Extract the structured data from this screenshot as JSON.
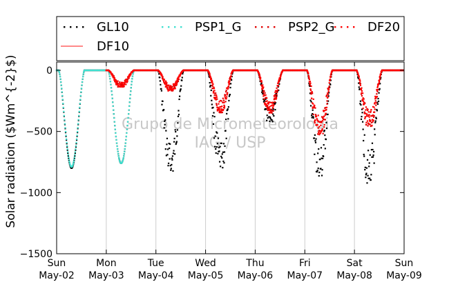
{
  "chart_data": {
    "type": "scatter",
    "ylabel": "Solar radiation ($Wm^{-2}$)",
    "ylim": [
      -1500,
      0
    ],
    "yticks": [
      0,
      -500,
      -1000,
      -1500
    ],
    "ytick_labels": [
      "0",
      "−500",
      "−1000",
      "−1500"
    ],
    "xlim": [
      "2010-05-02",
      "2010-05-09"
    ],
    "xtick_labels": [
      [
        "Sun",
        "May-02"
      ],
      [
        "Mon",
        "May-03"
      ],
      [
        "Tue",
        "May-04"
      ],
      [
        "Wed",
        "May-05"
      ],
      [
        "Thu",
        "May-06"
      ],
      [
        "Fri",
        "May-07"
      ],
      [
        "Sat",
        "May-08"
      ],
      [
        "Sun",
        "May-09"
      ]
    ],
    "grid": "vertical",
    "legend": {
      "placement": "top",
      "columns": 4
    },
    "watermark": [
      "Grupo de Micrometeorologia",
      "IAG / USP"
    ],
    "series": [
      {
        "name": "GL10",
        "color": "#000000",
        "marker": "dot",
        "daily_min": [
          -800,
          -760,
          -790,
          -780,
          -400,
          -830,
          -880
        ]
      },
      {
        "name": "PSP1_G",
        "color": "#40e0d0",
        "marker": "dot",
        "daily_min": [
          -790,
          -760
        ]
      },
      {
        "name": "PSP2_G",
        "color": "#e00000",
        "marker": "dot",
        "daily_min": [
          -130,
          -160,
          -330,
          -340,
          -510,
          -440
        ]
      },
      {
        "name": "DF20",
        "color": "#ff0000",
        "marker": "dot",
        "daily_min": [
          -130,
          -160,
          -320,
          -330,
          -500,
          -430
        ]
      },
      {
        "name": "DF10",
        "color": "#ff4040",
        "marker": "line",
        "daily_min": []
      }
    ]
  }
}
